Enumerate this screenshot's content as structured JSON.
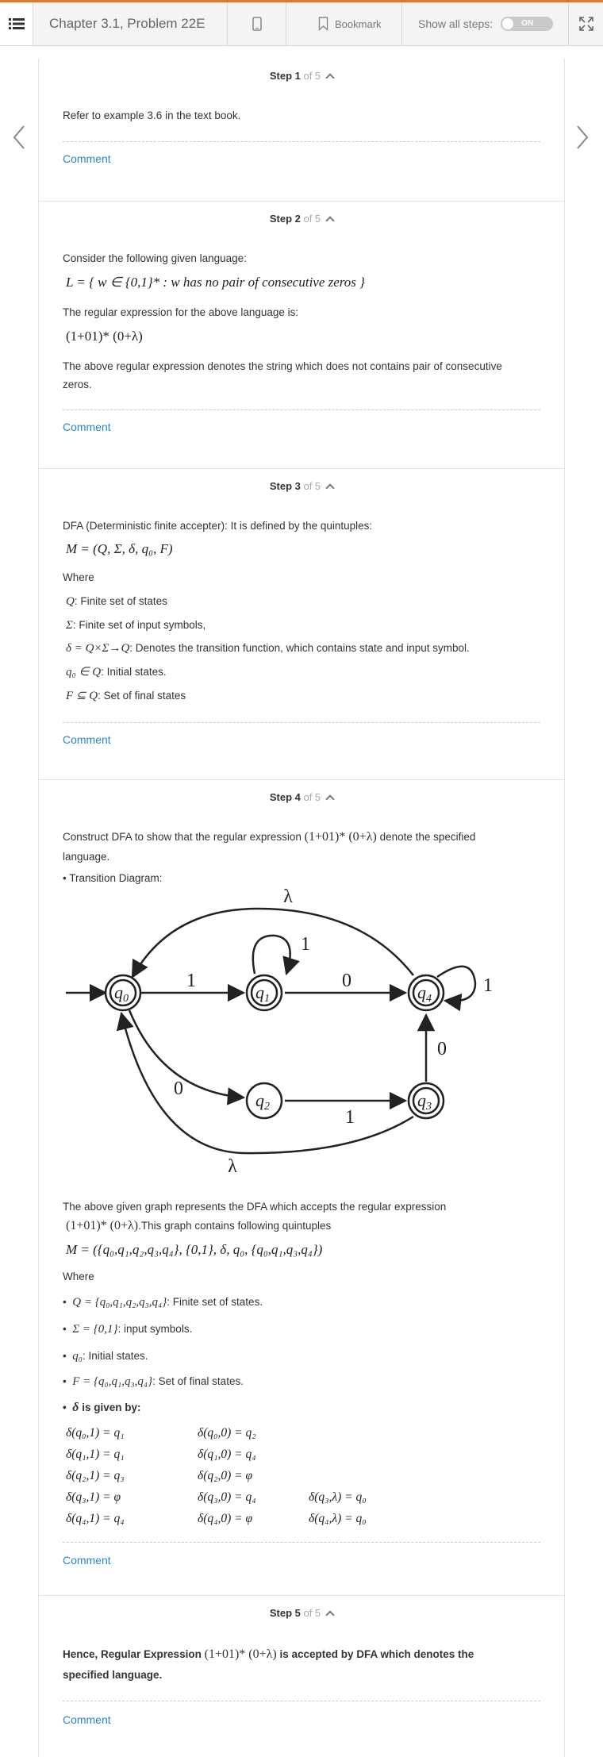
{
  "toolbar": {
    "chapter_title": "Chapter 3.1, Problem 22E",
    "bookmark_label": "Bookmark",
    "show_all_steps_label": "Show all steps:",
    "toggle_label": "ON"
  },
  "steps": [
    {
      "num": "Step 1",
      "of": " of 5",
      "lines": [
        "Refer to example 3.6 in the text book."
      ],
      "comment": "Comment"
    },
    {
      "num": "Step 2",
      "of": " of 5",
      "intro": "Consider the following given language:",
      "lang": "L = { w ∈ {0,1}* : w has no pair of consecutive zeros }",
      "regex_intro": "The regular expression for the above language is:",
      "regex": "(1+01)* (0+λ)",
      "desc": "The above regular expression denotes the string which does not contains pair of consecutive",
      "desc2": "zeros.",
      "comment": "Comment"
    },
    {
      "num": "Step 3",
      "of": " of 5",
      "intro": "DFA (Deterministic finite accepter): It is defined by the quintuples:",
      "tuple": "M = (Q, Σ, δ, q₀, F)",
      "where": "Where",
      "items": [
        {
          "sym": "Q",
          "text": ": Finite set of states"
        },
        {
          "sym": "Σ",
          "text": ": Finite set of input symbols,"
        },
        {
          "sym": "δ = Q×Σ→Q",
          "text": ": Denotes the transition function, which contains state and input symbol."
        },
        {
          "sym": "q₀ ∈ Q",
          "text": ": Initial states."
        },
        {
          "sym": "F ⊆ Q",
          "text": ": Set of final states"
        }
      ],
      "comment": "Comment"
    },
    {
      "num": "Step 4",
      "of": " of 5",
      "intro_a": "Construct DFA to show that the regular expression",
      "intro_regex": "(1+01)* (0+λ)",
      "intro_b": "denote the specified",
      "intro_c": "language.",
      "diagram_label": "• Transition Diagram:",
      "diagram": {
        "states": [
          "q0",
          "q1",
          "q2",
          "q3",
          "q4"
        ],
        "labels": {
          "e01": "1",
          "e14": "0",
          "e02": "0",
          "e23": "1",
          "e34": "0",
          "l1": "1",
          "l4": "1",
          "lam40": "λ",
          "lam30": "λ"
        }
      },
      "after_a": "The above given graph represents the DFA which accepts the regular expression",
      "after_regex": "(1+01)* (0+λ)",
      "after_b": ".This graph contains following quintuples",
      "tuple": "M = ({q₀,q₁,q₂,q₃,q₄}, {0,1}, δ, q₀, {q₀,q₁,q₃,q₄})",
      "where": "Where",
      "items": [
        {
          "sym": "Q = {q₀,q₁,q₂,q₃,q₄}",
          "text": ": Finite set of states."
        },
        {
          "sym": "Σ = {0,1}",
          "text": ": input symbols."
        },
        {
          "sym": "q₀",
          "text": ": Initial states."
        },
        {
          "sym": "F = {q₀,q₁,q₃,q₄}",
          "text": ": Set of final states."
        }
      ],
      "delta_label": "is given by:",
      "delta_sym": "δ",
      "delta": [
        [
          "δ(q₀,1) = q₁",
          "δ(q₀,0) = q₂",
          ""
        ],
        [
          "δ(q₁,1) = q₁",
          "δ(q₁,0) = q₄",
          ""
        ],
        [
          "δ(q₂,1) = q₃",
          "δ(q₂,0) = φ",
          ""
        ],
        [
          "δ(q₃,1) = φ",
          "δ(q₃,0) = q₄",
          "δ(q₃,λ) = q₀"
        ],
        [
          "δ(q₄,1) = q₄",
          "δ(q₄,0) = φ",
          "δ(q₄,λ) = q₀"
        ]
      ],
      "comment": "Comment"
    },
    {
      "num": "Step 5",
      "of": " of 5",
      "conc_a": "Hence, Regular Expression",
      "conc_regex": "(1+01)* (0+λ)",
      "conc_b": "is accepted by DFA which denotes the",
      "conc_c": "specified language.",
      "comment": "Comment"
    }
  ]
}
